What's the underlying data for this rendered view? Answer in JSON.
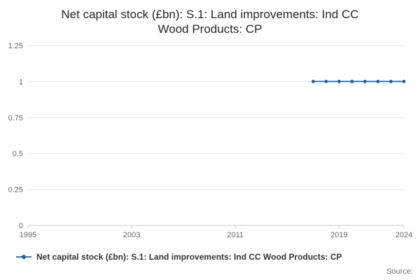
{
  "header": {
    "title_line1": "Net capital stock (£bn): S.1: Land improvements: Ind CC",
    "title_line2": "Wood Products: CP"
  },
  "legend": {
    "label": "Net capital stock (£bn): S.1: Land improvements: Ind CC Wood Products: CP"
  },
  "footer": {
    "source_label": "Source:"
  },
  "chart_data": {
    "type": "line",
    "title": "Net capital stock (£bn): S.1: Land improvements: Ind CC Wood Products: CP",
    "xlabel": "",
    "ylabel": "",
    "x": [
      2017,
      2018,
      2019,
      2020,
      2021,
      2022,
      2023,
      2024
    ],
    "series": [
      {
        "name": "Net capital stock (£bn): S.1: Land improvements: Ind CC Wood Products: CP",
        "values": [
          1,
          1,
          1,
          1,
          1,
          1,
          1,
          1
        ]
      }
    ],
    "xlim": [
      1995,
      2024
    ],
    "ylim": [
      0,
      1.25
    ],
    "x_ticks": [
      1995,
      2003,
      2011,
      2019,
      2024
    ],
    "y_ticks": [
      0,
      0.25,
      0.5,
      0.75,
      1,
      1.25
    ],
    "grid": true,
    "legend_position": "bottom-left",
    "line_color": "#2e7cbf",
    "marker_color": "#1c6399",
    "grid_color": "#e6e6e6",
    "axis_color": "#cccccc"
  }
}
